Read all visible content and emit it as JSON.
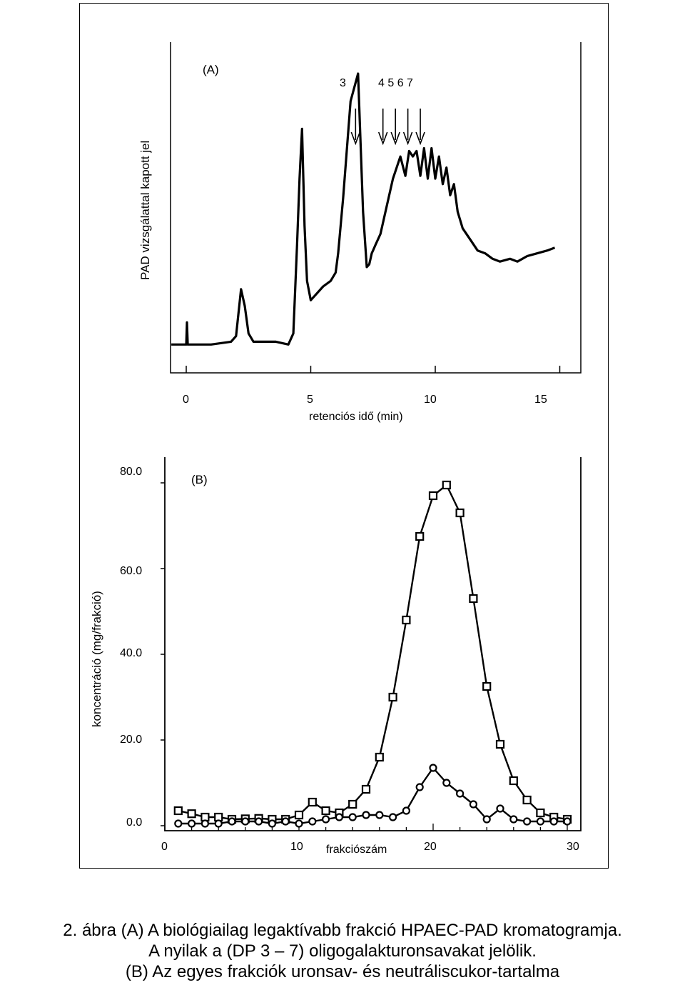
{
  "chart_data": [
    {
      "type": "line",
      "panel_label": "(A)",
      "ylabel": "PAD vizsgálattal kapott jel",
      "xlabel": "retenciós idő (min)",
      "xlim": [
        0,
        15
      ],
      "xticks": [
        0,
        5,
        10,
        15
      ],
      "xtick_labels": [
        "0",
        "5",
        "10",
        "15"
      ],
      "y_axis_values": "none shown",
      "annotations": {
        "arrow_labels": [
          "3",
          "4 5 6 7"
        ],
        "arrow_times": [
          6.8,
          7.9,
          8.4,
          8.9,
          9.4
        ]
      },
      "series": [
        {
          "x": [
            -0.6,
            0,
            0.03,
            0.06,
            1.0,
            1.8,
            2.0,
            2.2,
            2.35,
            2.5,
            2.7,
            3.0,
            3.6,
            4.1,
            4.3,
            4.45,
            4.55,
            4.65,
            4.75,
            4.85,
            5.0,
            5.2,
            5.5,
            5.8,
            6.0,
            6.1,
            6.3,
            6.6,
            6.9,
            7.1,
            7.25,
            7.35,
            7.45,
            7.5,
            7.6,
            7.8,
            8.0,
            8.3,
            8.6,
            8.8,
            8.95,
            9.1,
            9.25,
            9.4,
            9.55,
            9.7,
            9.85,
            10.0,
            10.15,
            10.3,
            10.45,
            10.6,
            10.75,
            10.9,
            11.1,
            11.4,
            11.7,
            12.0,
            12.3,
            12.6,
            13.0,
            13.3,
            13.7,
            14.1,
            14.5,
            14.8
          ],
          "y": [
            0.02,
            0.02,
            0.1,
            0.02,
            0.02,
            0.03,
            0.05,
            0.22,
            0.16,
            0.06,
            0.03,
            0.03,
            0.03,
            0.02,
            0.06,
            0.38,
            0.62,
            0.8,
            0.45,
            0.25,
            0.18,
            0.2,
            0.23,
            0.25,
            0.28,
            0.35,
            0.55,
            0.9,
            1.0,
            0.5,
            0.3,
            0.31,
            0.35,
            0.36,
            0.38,
            0.42,
            0.5,
            0.62,
            0.7,
            0.63,
            0.72,
            0.7,
            0.72,
            0.63,
            0.73,
            0.62,
            0.73,
            0.62,
            0.7,
            0.6,
            0.66,
            0.56,
            0.6,
            0.5,
            0.44,
            0.4,
            0.36,
            0.35,
            0.33,
            0.32,
            0.33,
            0.32,
            0.34,
            0.35,
            0.36,
            0.37
          ]
        }
      ]
    },
    {
      "type": "line",
      "panel_label": "(B)",
      "ylabel": "koncentráció (mg/frakció)",
      "xlabel": "frakciószám",
      "xlim": [
        0,
        31
      ],
      "ylim": [
        0,
        80
      ],
      "xticks": [
        0,
        10,
        20,
        30
      ],
      "xtick_labels": [
        "0",
        "10",
        "20",
        "30"
      ],
      "yticks": [
        0,
        20,
        40,
        60,
        80
      ],
      "ytick_labels": [
        "0.0",
        "20.0",
        "40.0",
        "60.0",
        "80.0"
      ],
      "series": [
        {
          "marker": "square",
          "x": [
            1,
            2,
            3,
            4,
            5,
            6,
            7,
            8,
            9,
            10,
            11,
            12,
            13,
            14,
            15,
            16,
            17,
            18,
            19,
            20,
            21,
            22,
            23,
            24,
            25,
            26,
            27,
            28,
            29,
            30
          ],
          "y": [
            3.5,
            2.8,
            2.0,
            2.0,
            1.5,
            1.6,
            1.7,
            1.5,
            1.5,
            2.5,
            5.5,
            3.5,
            3.0,
            5.0,
            8.5,
            16,
            30,
            48,
            67.5,
            77,
            79.5,
            73,
            53,
            32.5,
            19,
            10.5,
            6.0,
            3.0,
            2.0,
            1.5
          ]
        },
        {
          "marker": "circle",
          "x": [
            1,
            2,
            3,
            4,
            5,
            6,
            7,
            8,
            9,
            10,
            11,
            12,
            13,
            14,
            15,
            16,
            17,
            18,
            19,
            20,
            21,
            22,
            23,
            24,
            25,
            26,
            27,
            28,
            29,
            30
          ],
          "y": [
            0.5,
            0.5,
            0.5,
            0.5,
            1.0,
            1.0,
            1.0,
            0.5,
            1.0,
            0.5,
            1.0,
            1.5,
            2.0,
            2.0,
            2.5,
            2.5,
            2.0,
            3.5,
            9.0,
            13.5,
            10.0,
            7.5,
            5.0,
            1.5,
            4.0,
            1.5,
            1.0,
            1.0,
            1.0,
            1.0
          ]
        }
      ]
    }
  ],
  "caption": {
    "line1": "2. ábra (A) A biológiailag legaktívabb frakció HPAEC-PAD kromatogramja.",
    "line2": "A nyilak a (DP 3 – 7) oligogalakturonsavakat jelölik.",
    "line3": "(B) Az egyes frakciók uronsav- és neutráliscukor-tartalma"
  }
}
